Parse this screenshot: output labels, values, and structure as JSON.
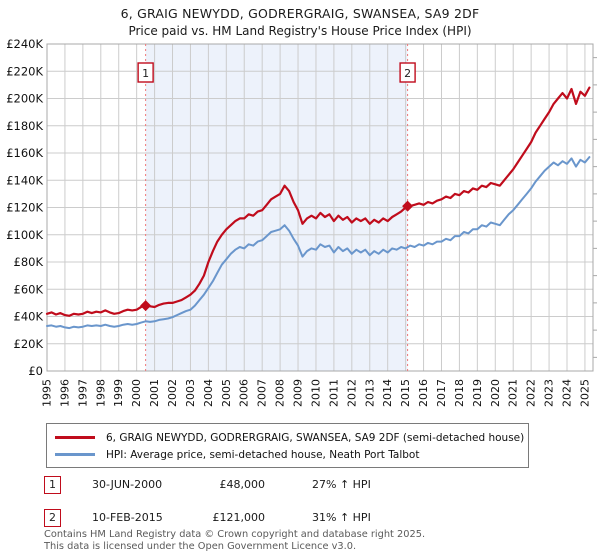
{
  "title": "6, GRAIG NEWYDD, GODRERGRAIG, SWANSEA, SA9 2DF",
  "subtitle": "Price paid vs. HM Land Registry's House Price Index (HPI)",
  "chart_data": {
    "type": "line",
    "x_min": 1995,
    "x_max": 2025.45,
    "y_min": 0,
    "y_max": 240,
    "x_step": 0.25,
    "x_ticks": [
      1995,
      1996,
      1997,
      1998,
      1999,
      2000,
      2001,
      2002,
      2003,
      2004,
      2005,
      2006,
      2007,
      2008,
      2009,
      2010,
      2011,
      2012,
      2013,
      2014,
      2015,
      2016,
      2017,
      2018,
      2019,
      2020,
      2021,
      2022,
      2023,
      2024,
      2025
    ],
    "y_ticks": [
      [
        0,
        "£0"
      ],
      [
        20,
        "£20K"
      ],
      [
        40,
        "£40K"
      ],
      [
        60,
        "£60K"
      ],
      [
        80,
        "£80K"
      ],
      [
        100,
        "£100K"
      ],
      [
        120,
        "£120K"
      ],
      [
        140,
        "£140K"
      ],
      [
        160,
        "£160K"
      ],
      [
        180,
        "£180K"
      ],
      [
        200,
        "£200K"
      ],
      [
        220,
        "£220K"
      ],
      [
        240,
        "£240K"
      ]
    ],
    "grid_color": "#cccccc",
    "border_color": "#a8a8a8",
    "band_color": "#edf2fb",
    "marker_line_color": "#ee7777",
    "series": [
      {
        "name": "6, GRAIG NEWYDD, GODRERGRAIG, SWANSEA, SA9 2DF (semi-detached house)",
        "color": "#c00c1c",
        "width": 2.2,
        "values": [
          42,
          43,
          41.5,
          42.5,
          41,
          40.5,
          42,
          41.5,
          42,
          43.5,
          42.5,
          43.5,
          43,
          44.5,
          43,
          42,
          42.5,
          44,
          45,
          44.5,
          45,
          47,
          48,
          47.5,
          47,
          48.5,
          49.5,
          50,
          50,
          51,
          52,
          54,
          56,
          59,
          64,
          70,
          80,
          88,
          95,
          100,
          104,
          107,
          110,
          112,
          112,
          115,
          114,
          117,
          118,
          122,
          126,
          128,
          130,
          136,
          132,
          124,
          118,
          108,
          112,
          114,
          112,
          116,
          113,
          115,
          110,
          114,
          111,
          113,
          109,
          112,
          110,
          112,
          108,
          111,
          109,
          112,
          110,
          113,
          115,
          117,
          120,
          121,
          122,
          123,
          122,
          124,
          123,
          125,
          126,
          128,
          127,
          130,
          129,
          132,
          131,
          134,
          133,
          136,
          135,
          138,
          137,
          136,
          140,
          144,
          148,
          153,
          158,
          163,
          168,
          175,
          180,
          185,
          190,
          196,
          200,
          204,
          200,
          207,
          196,
          205,
          202,
          208
        ]
      },
      {
        "name": "HPI: Average price, semi-detached house, Neath Port Talbot",
        "color": "#6a96cc",
        "width": 2,
        "values": [
          33,
          33.5,
          32.5,
          33,
          32,
          31.5,
          32.5,
          32,
          32.5,
          33.5,
          33,
          33.5,
          33,
          34,
          33,
          32.5,
          33,
          34,
          34.5,
          34,
          34.5,
          35.5,
          36.5,
          36,
          36.5,
          37.5,
          38,
          38.5,
          39.5,
          41,
          42.5,
          44,
          45,
          48,
          52,
          56,
          61,
          66,
          72,
          78,
          82,
          86,
          89,
          91,
          90,
          93,
          92,
          95,
          96,
          99,
          102,
          103,
          104,
          107,
          103,
          97,
          92,
          84,
          88,
          90,
          89,
          93,
          91,
          92,
          87,
          91,
          88,
          90,
          86,
          89,
          87,
          89,
          85,
          88,
          86,
          89,
          87,
          90,
          89,
          91,
          90,
          92,
          91,
          93,
          92,
          94,
          93,
          95,
          95,
          97,
          96,
          99,
          99,
          102,
          101,
          104,
          104,
          107,
          106,
          109,
          108,
          107,
          111,
          115,
          118,
          122,
          126,
          130,
          134,
          139,
          143,
          147,
          150,
          153,
          151,
          154,
          152,
          156,
          150,
          155,
          153,
          157
        ]
      }
    ],
    "markers": [
      {
        "label": "1",
        "x": 2000.5,
        "y": 48
      },
      {
        "label": "2",
        "x": 2015.11,
        "y": 121
      }
    ]
  },
  "legend": [
    {
      "label": "6, GRAIG NEWYDD, GODRERGRAIG, SWANSEA, SA9 2DF (semi-detached house)",
      "color": "#c00c1c"
    },
    {
      "label": "HPI: Average price, semi-detached house, Neath Port Talbot",
      "color": "#6a96cc"
    }
  ],
  "sales": [
    {
      "num": "1",
      "date": "30-JUN-2000",
      "price": "£48,000",
      "hpi": "27% ↑ HPI"
    },
    {
      "num": "2",
      "date": "10-FEB-2015",
      "price": "£121,000",
      "hpi": "31% ↑ HPI"
    }
  ],
  "footer": {
    "line1": "Contains HM Land Registry data © Crown copyright and database right 2025.",
    "line2": "This data is licensed under the Open Government Licence v3.0."
  }
}
